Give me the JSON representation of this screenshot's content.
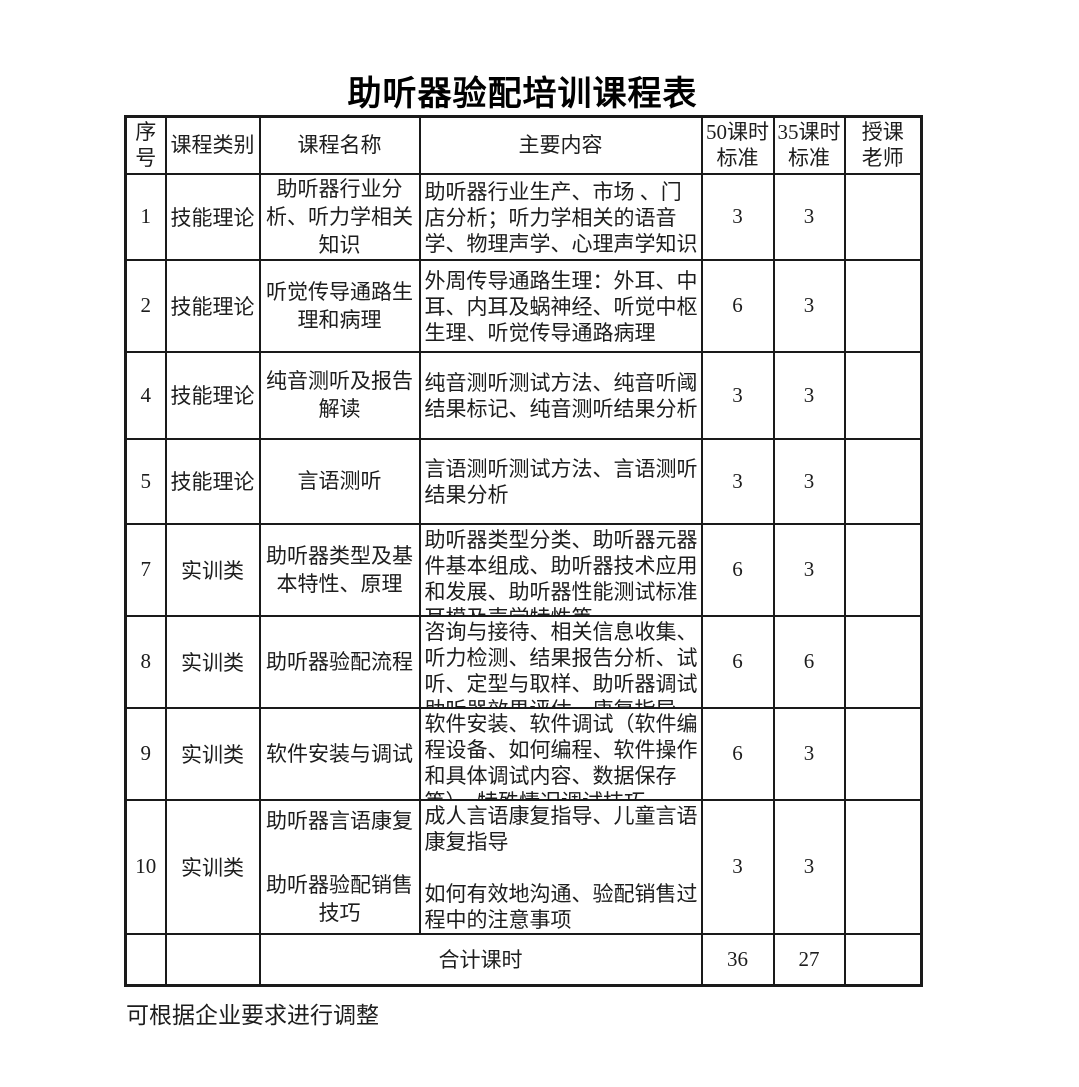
{
  "page": {
    "title": "助听器验配培训课程表",
    "footnote": "可根据企业要求进行调整"
  },
  "table": {
    "headers": [
      "序\n号",
      "课程类别",
      "课程名称",
      "主要内容",
      "50课时\n标准",
      "35课时\n标准",
      "授课\n老师"
    ],
    "rows": [
      {
        "no": "1",
        "category": "技能理论",
        "name": [
          "助听器行业分析、听力学相关知识"
        ],
        "content": [
          "助听器行业生产、市场 、门店分析；听力学相关的语音学、物理声学、心理声学知识"
        ],
        "hours50": "3",
        "hours35": "3",
        "teacher": ""
      },
      {
        "no": "2",
        "category": "技能理论",
        "name": [
          "听觉传导通路生理和病理"
        ],
        "content": [
          "外周传导通路生理：外耳、中耳、内耳及蜗神经、听觉中枢生理、听觉传导通路病理"
        ],
        "hours50": "6",
        "hours35": "3",
        "teacher": ""
      },
      {
        "no": "4",
        "category": "技能理论",
        "name": [
          "纯音测听及报告解读"
        ],
        "content": [
          "纯音测听测试方法、纯音听阈结果标记、纯音测听结果分析"
        ],
        "hours50": "3",
        "hours35": "3",
        "teacher": ""
      },
      {
        "no": "5",
        "category": "技能理论",
        "name": [
          "言语测听"
        ],
        "content": [
          "言语测听测试方法、言语测听结果分析"
        ],
        "hours50": "3",
        "hours35": "3",
        "teacher": ""
      },
      {
        "no": "7",
        "category": "实训类",
        "name": [
          "助听器类型及基本特性、原理"
        ],
        "content": [
          "助听器类型分类、助听器元器件基本组成、助听器技术应用和发展、助听器性能测试标准耳模及声学特性等"
        ],
        "hours50": "6",
        "hours35": "3",
        "teacher": ""
      },
      {
        "no": "8",
        "category": "实训类",
        "name": [
          "助听器验配流程"
        ],
        "content": [
          "咨询与接待、相关信息收集、听力检测、结果报告分析、试听、定型与取样、助听器调试助听器效果评估、康复指导"
        ],
        "hours50": "6",
        "hours35": "6",
        "teacher": ""
      },
      {
        "no": "9",
        "category": "实训类",
        "name": [
          "软件安装与调试"
        ],
        "content": [
          "软件安装、软件调试（软件编程设备、如何编程、软件操作和具体调试内容、数据保存等）、特殊情况调试技巧"
        ],
        "hours50": "6",
        "hours35": "3",
        "teacher": ""
      },
      {
        "no": "10",
        "category": "实训类",
        "name": [
          "助听器言语康复",
          "助听器验配销售技巧"
        ],
        "content": [
          "成人言语康复指导、儿童言语康复指导",
          "如何有效地沟通、验配销售过程中的注意事项"
        ],
        "hours50": "3",
        "hours35": "3",
        "teacher": ""
      }
    ],
    "total": {
      "no": "",
      "category": "",
      "label": "合计课时",
      "hours50": "36",
      "hours35": "27",
      "teacher": ""
    }
  }
}
